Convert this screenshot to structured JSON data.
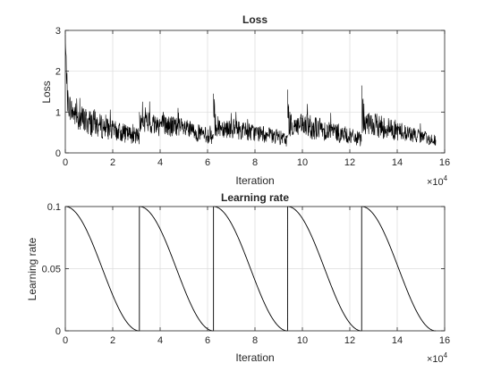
{
  "chart_data": [
    {
      "type": "line",
      "title": "Loss",
      "xlabel": "Iteration",
      "ylabel": "Loss",
      "x_multiplier_label": "×10",
      "x_multiplier_exp": "4",
      "xlim": [
        0,
        16
      ],
      "ylim": [
        0,
        3
      ],
      "xticks": [
        0,
        2,
        4,
        6,
        8,
        10,
        12,
        14,
        16
      ],
      "yticks": [
        0,
        1,
        2,
        3
      ],
      "grid": true,
      "line_color": "#000000",
      "x_units": "x 10^4 iterations",
      "cycle_restarts": [
        0,
        3.125,
        6.25,
        9.375,
        12.5
      ],
      "end_x": 15.625,
      "series": [
        {
          "segments": [
            {
              "x": [
                0,
                0.1,
                0.3,
                0.6,
                1.0,
                1.5,
                2.0,
                2.5,
                3.12
              ],
              "upper": [
                2.9,
                1.6,
                1.3,
                1.2,
                1.1,
                0.95,
                0.8,
                0.7,
                0.6
              ],
              "lower": [
                2.6,
                0.9,
                0.7,
                0.5,
                0.4,
                0.35,
                0.3,
                0.25,
                0.2
              ]
            },
            {
              "x": [
                3.125,
                3.3,
                4.0,
                4.7,
                5.4,
                6.24
              ],
              "upper": [
                1.0,
                1.05,
                1.0,
                0.9,
                0.75,
                0.55
              ],
              "lower": [
                0.45,
                0.45,
                0.4,
                0.35,
                0.3,
                0.2
              ]
            },
            {
              "x": [
                6.25,
                6.4,
                7.0,
                7.7,
                8.4,
                9.37
              ],
              "upper": [
                1.45,
                0.9,
                0.85,
                0.75,
                0.65,
                0.5
              ],
              "lower": [
                0.35,
                0.4,
                0.35,
                0.3,
                0.25,
                0.15
              ]
            },
            {
              "x": [
                9.375,
                9.5,
                10.2,
                10.9,
                11.6,
                12.49
              ],
              "upper": [
                1.55,
                0.95,
                0.95,
                0.85,
                0.7,
                0.5
              ],
              "lower": [
                0.4,
                0.4,
                0.35,
                0.3,
                0.25,
                0.15
              ]
            },
            {
              "x": [
                12.5,
                12.65,
                13.3,
                14.0,
                14.8,
                15.625
              ],
              "upper": [
                1.65,
                1.0,
                0.95,
                0.8,
                0.6,
                0.45
              ],
              "lower": [
                0.5,
                0.4,
                0.35,
                0.3,
                0.25,
                0.15
              ]
            }
          ]
        }
      ]
    },
    {
      "type": "line",
      "title": "Learning rate",
      "xlabel": "Iteration",
      "ylabel": "Learning rate",
      "x_multiplier_label": "×10",
      "x_multiplier_exp": "4",
      "xlim": [
        0,
        16
      ],
      "ylim": [
        0,
        0.1
      ],
      "xticks": [
        0,
        2,
        4,
        6,
        8,
        10,
        12,
        14,
        16
      ],
      "ytick_labels": [
        "0",
        "0.05",
        "0.1"
      ],
      "yticks": [
        0,
        0.05,
        0.1
      ],
      "grid": true,
      "line_color": "#000000",
      "schedule": "cosine annealing with warm restarts",
      "max_lr": 0.1,
      "min_lr": 0,
      "cycle_starts": [
        0,
        3.125,
        6.25,
        9.375,
        12.5
      ],
      "cycle_length": 3.125
    }
  ]
}
